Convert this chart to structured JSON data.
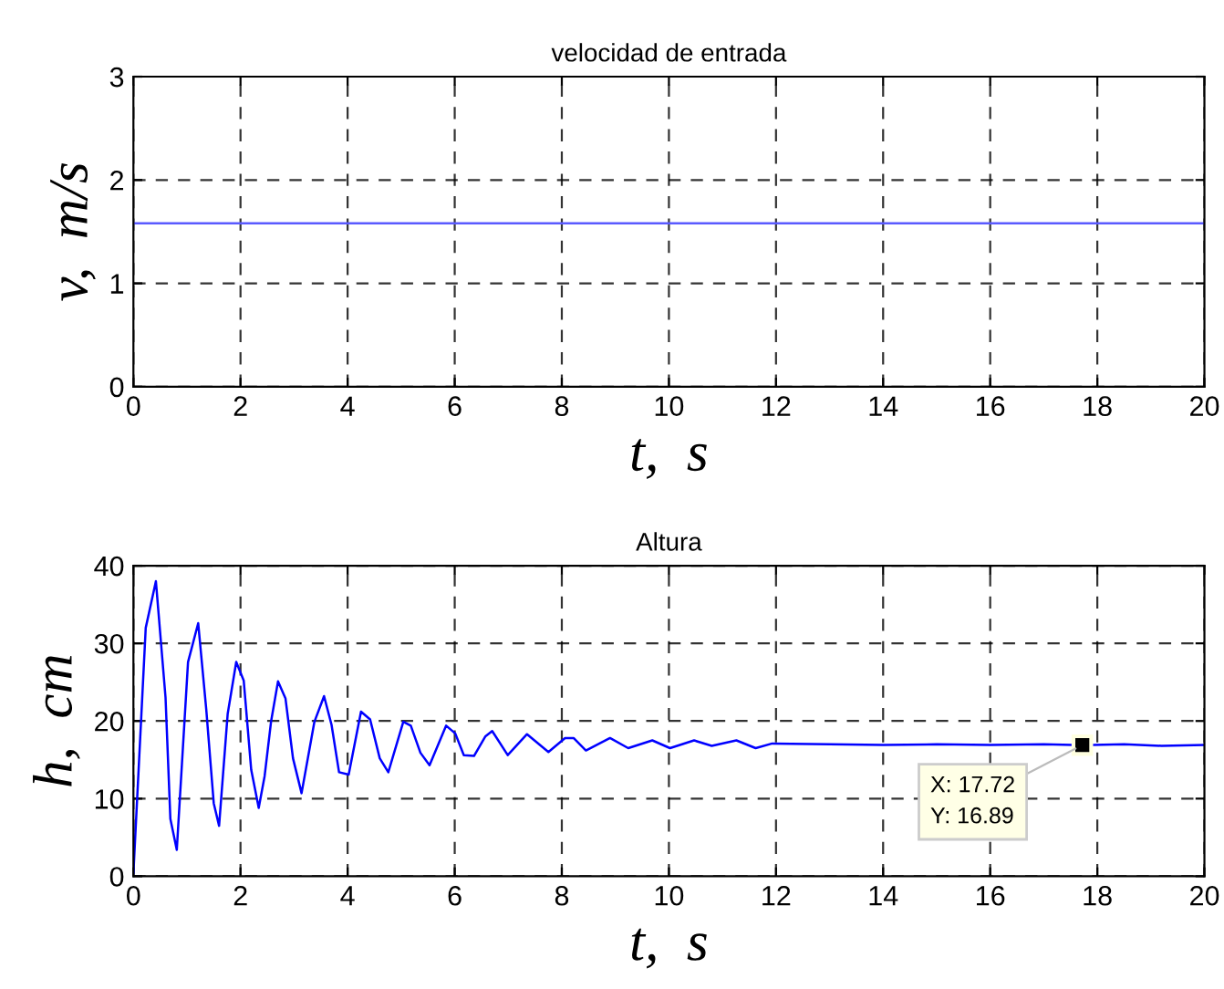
{
  "chart_data": [
    {
      "type": "line",
      "title": "velocidad de entrada",
      "xlabel": "t,  s",
      "ylabel": "v,  m/s",
      "xlim": [
        0,
        20
      ],
      "ylim": [
        0,
        3
      ],
      "xticks": [
        0,
        2,
        4,
        6,
        8,
        10,
        12,
        14,
        16,
        18,
        20
      ],
      "yticks": [
        0,
        1,
        2,
        3
      ],
      "grid": true,
      "line_style": "solid",
      "series": [
        {
          "color": "#5a5aff",
          "x": [
            0,
            20
          ],
          "values": [
            1.58,
            1.58
          ]
        }
      ]
    },
    {
      "type": "line",
      "title": "Altura",
      "xlabel": "t,  s",
      "ylabel": "h,  cm",
      "xlim": [
        0,
        20
      ],
      "ylim": [
        0,
        40
      ],
      "xticks": [
        0,
        2,
        4,
        6,
        8,
        10,
        12,
        14,
        16,
        18,
        20
      ],
      "yticks": [
        0,
        10,
        20,
        30,
        40
      ],
      "grid": true,
      "line_style": "solid",
      "annotations": [
        {
          "text": "X: 17.72\nY: 16.89",
          "x": 17.72,
          "y": 16.89
        }
      ],
      "series": [
        {
          "color": "#0000ff",
          "x": [
            0,
            0.23,
            0.42,
            0.6,
            0.69,
            0.81,
            1.02,
            1.21,
            1.36,
            1.5,
            1.6,
            1.76,
            1.92,
            2.06,
            2.2,
            2.34,
            2.45,
            2.57,
            2.7,
            2.84,
            2.98,
            3.14,
            3.38,
            3.56,
            3.7,
            3.84,
            4.02,
            4.25,
            4.42,
            4.6,
            4.76,
            5.04,
            5.18,
            5.36,
            5.53,
            5.84,
            6.01,
            6.17,
            6.36,
            6.57,
            6.7,
            6.99,
            7.35,
            7.75,
            8.06,
            8.22,
            8.45,
            8.9,
            9.24,
            9.69,
            10.02,
            10.47,
            10.8,
            11.26,
            11.62,
            11.93,
            13,
            14,
            15,
            16,
            17,
            17.72,
            18.5,
            19.2,
            20
          ],
          "values": [
            0.4,
            32,
            38,
            23,
            7.4,
            3.4,
            27.6,
            32.6,
            21.5,
            9.4,
            6.5,
            20.9,
            27.6,
            25.2,
            13.7,
            8.8,
            12.9,
            19.9,
            25.1,
            22.9,
            15.2,
            10.7,
            19.9,
            23.2,
            19.5,
            13.4,
            13.1,
            21.2,
            20.2,
            15.2,
            13.4,
            19.9,
            19.4,
            15.9,
            14.3,
            19.4,
            18.4,
            15.6,
            15.5,
            18.0,
            18.7,
            15.6,
            18.3,
            16.0,
            17.8,
            17.8,
            16.2,
            17.8,
            16.5,
            17.5,
            16.5,
            17.5,
            16.8,
            17.5,
            16.5,
            17.1,
            17.0,
            16.9,
            17.0,
            16.9,
            17.0,
            16.89,
            17.0,
            16.8,
            16.9
          ]
        }
      ]
    }
  ]
}
